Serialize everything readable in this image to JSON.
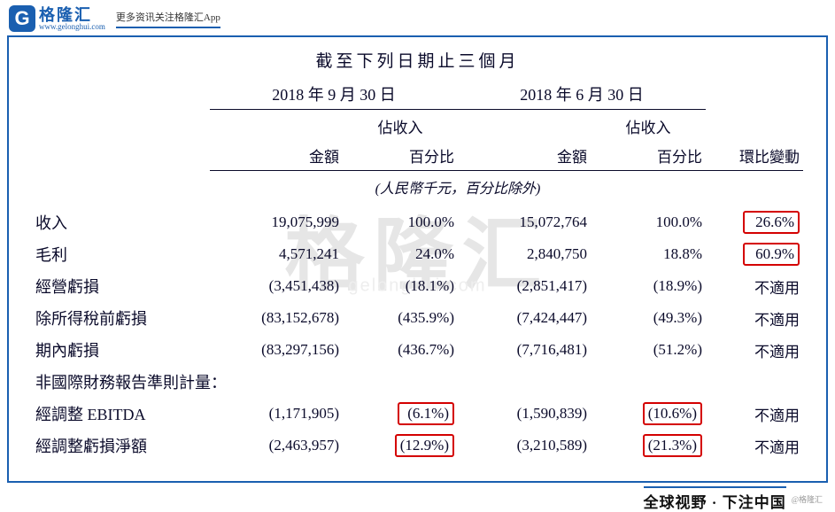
{
  "brand": {
    "logo_letter": "G",
    "name_cn": "格隆汇",
    "url": "www.gelonghui.com",
    "tagline": "更多资讯关注格隆汇App"
  },
  "colors": {
    "brand": "#1a5fb0",
    "highlight_border": "#d40000",
    "text": "#0a0a2a"
  },
  "watermark": {
    "main": "格隆汇",
    "sub": "gelonghui.com"
  },
  "table": {
    "period_title": "截至下列日期止三個月",
    "dates": [
      "2018 年 9 月 30 日",
      "2018 年 6 月 30 日"
    ],
    "sub_headers": {
      "pct_label": "佔收入"
    },
    "col_headers": {
      "amount": "金額",
      "pct": "百分比",
      "change": "環比變動"
    },
    "unit_note": "(人民幣千元，百分比除外)",
    "rows": [
      {
        "label": "收入",
        "amt1": "19,075,999",
        "pct1": "100.0%",
        "amt2": "15,072,764",
        "pct2": "100.0%",
        "chg": "26.6%",
        "hl_chg": true
      },
      {
        "label": "毛利",
        "amt1": "4,571,241",
        "pct1": "24.0%",
        "amt2": "2,840,750",
        "pct2": "18.8%",
        "chg": "60.9%",
        "hl_chg": true
      },
      {
        "label": "經營虧損",
        "amt1": "(3,451,438)",
        "pct1": "(18.1%)",
        "amt2": "(2,851,417)",
        "pct2": "(18.9%)",
        "chg": "不適用"
      },
      {
        "label": "除所得稅前虧損",
        "amt1": "(83,152,678)",
        "pct1": "(435.9%)",
        "amt2": "(7,424,447)",
        "pct2": "(49.3%)",
        "chg": "不適用"
      },
      {
        "label": "期內虧損",
        "amt1": "(83,297,156)",
        "pct1": "(436.7%)",
        "amt2": "(7,716,481)",
        "pct2": "(51.2%)",
        "chg": "不適用"
      },
      {
        "label": "非國際財務報告準則計量：",
        "section": true
      },
      {
        "label": "經調整 EBITDA",
        "amt1": "(1,171,905)",
        "pct1": "(6.1%)",
        "hl_pct1": true,
        "amt2": "(1,590,839)",
        "pct2": "(10.6%)",
        "hl_pct2": true,
        "chg": "不適用"
      },
      {
        "label": "經調整虧損淨額",
        "amt1": "(2,463,957)",
        "pct1": "(12.9%)",
        "hl_pct1": true,
        "amt2": "(3,210,589)",
        "pct2": "(21.3%)",
        "hl_pct2": true,
        "chg": "不適用"
      }
    ]
  },
  "footer": {
    "slogan": "全球视野 · 下注中国",
    "tag": "@格隆汇"
  }
}
